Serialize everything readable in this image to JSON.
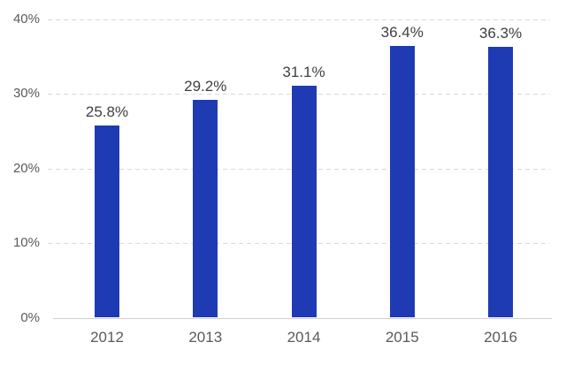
{
  "page": {
    "background": "#FFFFFF"
  },
  "chart_data": {
    "type": "bar",
    "title": "",
    "xlabel": "",
    "ylabel": "",
    "categories": [
      "2012",
      "2013",
      "2014",
      "2015",
      "2016"
    ],
    "values": [
      25.8,
      29.2,
      31.1,
      36.4,
      36.3
    ],
    "value_labels": [
      "25.8%",
      "29.2%",
      "31.1%",
      "36.4%",
      "36.3%"
    ],
    "ylim": [
      0,
      40
    ],
    "yticks": [
      0,
      10,
      20,
      30,
      40
    ],
    "ytick_labels": [
      "0%",
      "10%",
      "20%",
      "30%",
      "40%"
    ],
    "grid": "horizontal-dashed",
    "legend": "none",
    "colors": {
      "bar": "#1F3BB3",
      "value_label": "#3F3F3F",
      "axis_text": "#5A5A5A",
      "gridline": "#D9D9D9",
      "baseline": "#CFCFCF"
    }
  }
}
